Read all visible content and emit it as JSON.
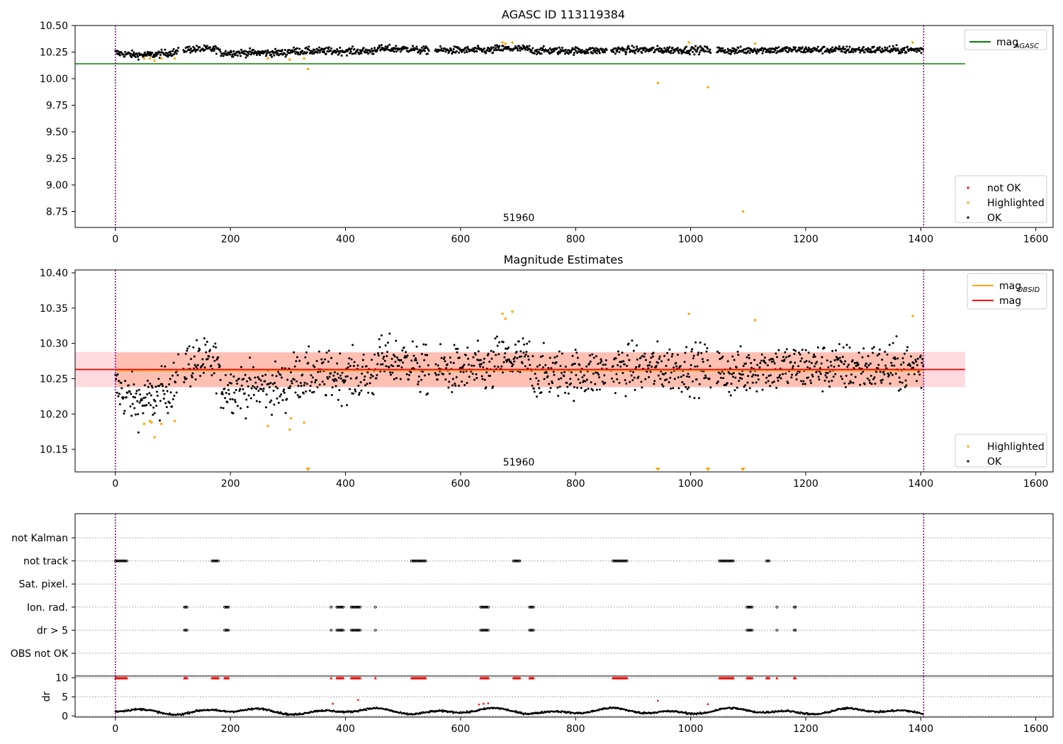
{
  "chart_data": [
    {
      "type": "scatter",
      "title": "AGASC ID 113119384",
      "xlim": [
        -70,
        1630
      ],
      "ylim": [
        8.6,
        10.5
      ],
      "xticks": [
        0,
        200,
        400,
        600,
        800,
        1000,
        1200,
        1400,
        1600
      ],
      "yticks": [
        8.75,
        9.0,
        9.25,
        9.5,
        9.75,
        10.0,
        10.25,
        10.5
      ],
      "ytick_labels": [
        "8.75",
        "9.00",
        "9.25",
        "9.50",
        "9.75",
        "10.00",
        "10.25",
        "10.50"
      ],
      "hline": {
        "name": "mag",
        "subscript": "AGASC",
        "y": 10.14,
        "x_range": [
          -70,
          1477
        ],
        "color": "#008000"
      },
      "obsid_bounds": [
        0,
        1405
      ],
      "obsid_label": "51960",
      "legends": [
        {
          "placement": "top-right",
          "entries": [
            {
              "label": "mag",
              "subscript": "AGASC",
              "kind": "line",
              "color": "#008000"
            }
          ]
        },
        {
          "placement": "bottom-right",
          "entries": [
            {
              "label": "not OK",
              "kind": "marker",
              "color": "#ff0000"
            },
            {
              "label": "Highlighted",
              "kind": "marker",
              "color": "#ffa500"
            },
            {
              "label": "OK",
              "kind": "marker",
              "color": "#000000"
            }
          ]
        }
      ],
      "ok_series": {
        "name": "OK",
        "color": "#000000",
        "x_range": [
          0,
          1405
        ],
        "count": 1400,
        "y_center": 10.264,
        "y_spread": 0.025
      },
      "highlighted": {
        "name": "Highlighted",
        "color": "#ffa500",
        "points": [
          [
            50,
            10.19
          ],
          [
            60,
            10.19
          ],
          [
            68,
            10.17
          ],
          [
            80,
            10.19
          ],
          [
            103,
            10.19
          ],
          [
            265,
            10.19
          ],
          [
            303,
            10.18
          ],
          [
            328,
            10.19
          ],
          [
            335,
            10.09
          ],
          [
            673,
            10.34
          ],
          [
            678,
            10.33
          ],
          [
            690,
            10.34
          ],
          [
            943,
            9.96
          ],
          [
            997,
            10.34
          ],
          [
            1030,
            9.92
          ],
          [
            1091,
            8.75
          ],
          [
            1112,
            10.33
          ],
          [
            1386,
            10.34
          ]
        ]
      },
      "not_ok": {
        "name": "not OK",
        "color": "#ff0000",
        "points": []
      }
    },
    {
      "type": "scatter",
      "title": "Magnitude Estimates",
      "xlim": [
        -70,
        1630
      ],
      "ylim": [
        10.118,
        10.404
      ],
      "xticks": [
        0,
        200,
        400,
        600,
        800,
        1000,
        1200,
        1400,
        1600
      ],
      "yticks": [
        10.15,
        10.2,
        10.25,
        10.3,
        10.35,
        10.4
      ],
      "ytick_labels": [
        "10.15",
        "10.20",
        "10.25",
        "10.30",
        "10.35",
        "10.40"
      ],
      "mag_line": {
        "name": "mag",
        "y": 10.263,
        "color": "#ff0000",
        "band": [
          10.238,
          10.288
        ],
        "band_color": "#ffc0cb",
        "x_range": [
          -70,
          1477
        ]
      },
      "mag_obsid": {
        "name": "mag",
        "subscript": "OBSID",
        "y": 10.262,
        "color": "#ffa500",
        "band": [
          10.238,
          10.287
        ],
        "band_color": "#ffa07a",
        "x_range": [
          0,
          1405
        ]
      },
      "obsid_bounds": [
        0,
        1405
      ],
      "obsid_label": "51960",
      "legends": [
        {
          "placement": "top-right",
          "entries": [
            {
              "label": "mag",
              "subscript": "OBSID",
              "kind": "line",
              "color": "#ffa500"
            },
            {
              "label": "mag",
              "kind": "line",
              "color": "#ff0000"
            }
          ]
        },
        {
          "placement": "bottom-right",
          "entries": [
            {
              "label": "Highlighted",
              "kind": "marker",
              "color": "#ffa500"
            },
            {
              "label": "OK",
              "kind": "marker",
              "color": "#000000"
            }
          ]
        }
      ],
      "highlighted": {
        "name": "Highlighted",
        "color": "#ffa500",
        "points": [
          [
            50,
            10.186
          ],
          [
            60,
            10.19
          ],
          [
            63,
            10.188
          ],
          [
            68,
            10.167
          ],
          [
            80,
            10.186
          ],
          [
            103,
            10.19
          ],
          [
            265,
            10.183
          ],
          [
            303,
            10.178
          ],
          [
            305,
            10.194
          ],
          [
            328,
            10.188
          ],
          [
            673,
            10.342
          ],
          [
            678,
            10.335
          ],
          [
            690,
            10.345
          ],
          [
            997,
            10.342
          ],
          [
            1112,
            10.333
          ],
          [
            1386,
            10.339
          ]
        ]
      },
      "offscale_markers": {
        "color": "#ffa500",
        "x": [
          335,
          943,
          1030,
          1091
        ],
        "placement": "bottom-edge"
      }
    },
    {
      "type": "scatter",
      "title": "",
      "xlim": [
        -70,
        1630
      ],
      "xticks": [
        0,
        200,
        400,
        600,
        800,
        1000,
        1200,
        1400,
        1600
      ],
      "flag_rows": [
        "not Kalman",
        "not track",
        "Sat. pixel.",
        "Ion. rad.",
        "dr > 5",
        "OBS not OK"
      ],
      "flag_points": {
        "not track": [
          [
            0,
            20
          ],
          [
            168,
            180
          ],
          [
            515,
            540
          ],
          [
            692,
            705
          ],
          [
            865,
            890
          ],
          [
            1050,
            1075
          ],
          [
            1132,
            1138
          ]
        ],
        "Ion. rad.": [
          [
            120,
            126
          ],
          [
            190,
            198
          ],
          [
            375,
            375
          ],
          [
            385,
            398
          ],
          [
            410,
            426
          ],
          [
            452,
            452
          ],
          [
            635,
            650
          ],
          [
            720,
            728
          ],
          [
            1098,
            1108
          ],
          [
            1150,
            1150
          ],
          [
            1180,
            1184
          ]
        ],
        "dr > 5": [
          [
            120,
            126
          ],
          [
            190,
            198
          ],
          [
            375,
            375
          ],
          [
            385,
            398
          ],
          [
            410,
            426
          ],
          [
            452,
            452
          ],
          [
            635,
            650
          ],
          [
            720,
            728
          ],
          [
            1098,
            1108
          ],
          [
            1150,
            1150
          ],
          [
            1180,
            1184
          ]
        ]
      },
      "dr": {
        "ylabel": "dr",
        "ylim": [
          -0.3,
          10.5
        ],
        "yticks": [
          0,
          5,
          10
        ],
        "ytick_labels": [
          "0",
          "5",
          "10"
        ],
        "clip_value": 10,
        "clipped_color": "#ff0000",
        "clipped_x_ranges": [
          [
            0,
            20
          ],
          [
            120,
            126
          ],
          [
            168,
            180
          ],
          [
            190,
            198
          ],
          [
            375,
            375
          ],
          [
            385,
            398
          ],
          [
            410,
            426
          ],
          [
            452,
            452
          ],
          [
            515,
            540
          ],
          [
            635,
            650
          ],
          [
            692,
            705
          ],
          [
            720,
            728
          ],
          [
            865,
            890
          ],
          [
            1050,
            1075
          ],
          [
            1098,
            1108
          ],
          [
            1132,
            1138
          ],
          [
            1150,
            1150
          ],
          [
            1180,
            1184
          ]
        ],
        "red_points": [
          [
            378,
            3.2
          ],
          [
            422,
            4.2
          ],
          [
            632,
            3.0
          ],
          [
            640,
            3.2
          ],
          [
            648,
            3.3
          ],
          [
            943,
            4.0
          ],
          [
            1030,
            3.1
          ]
        ],
        "ok_color": "#000000"
      },
      "obsid_bounds": [
        0,
        1405
      ]
    }
  ]
}
